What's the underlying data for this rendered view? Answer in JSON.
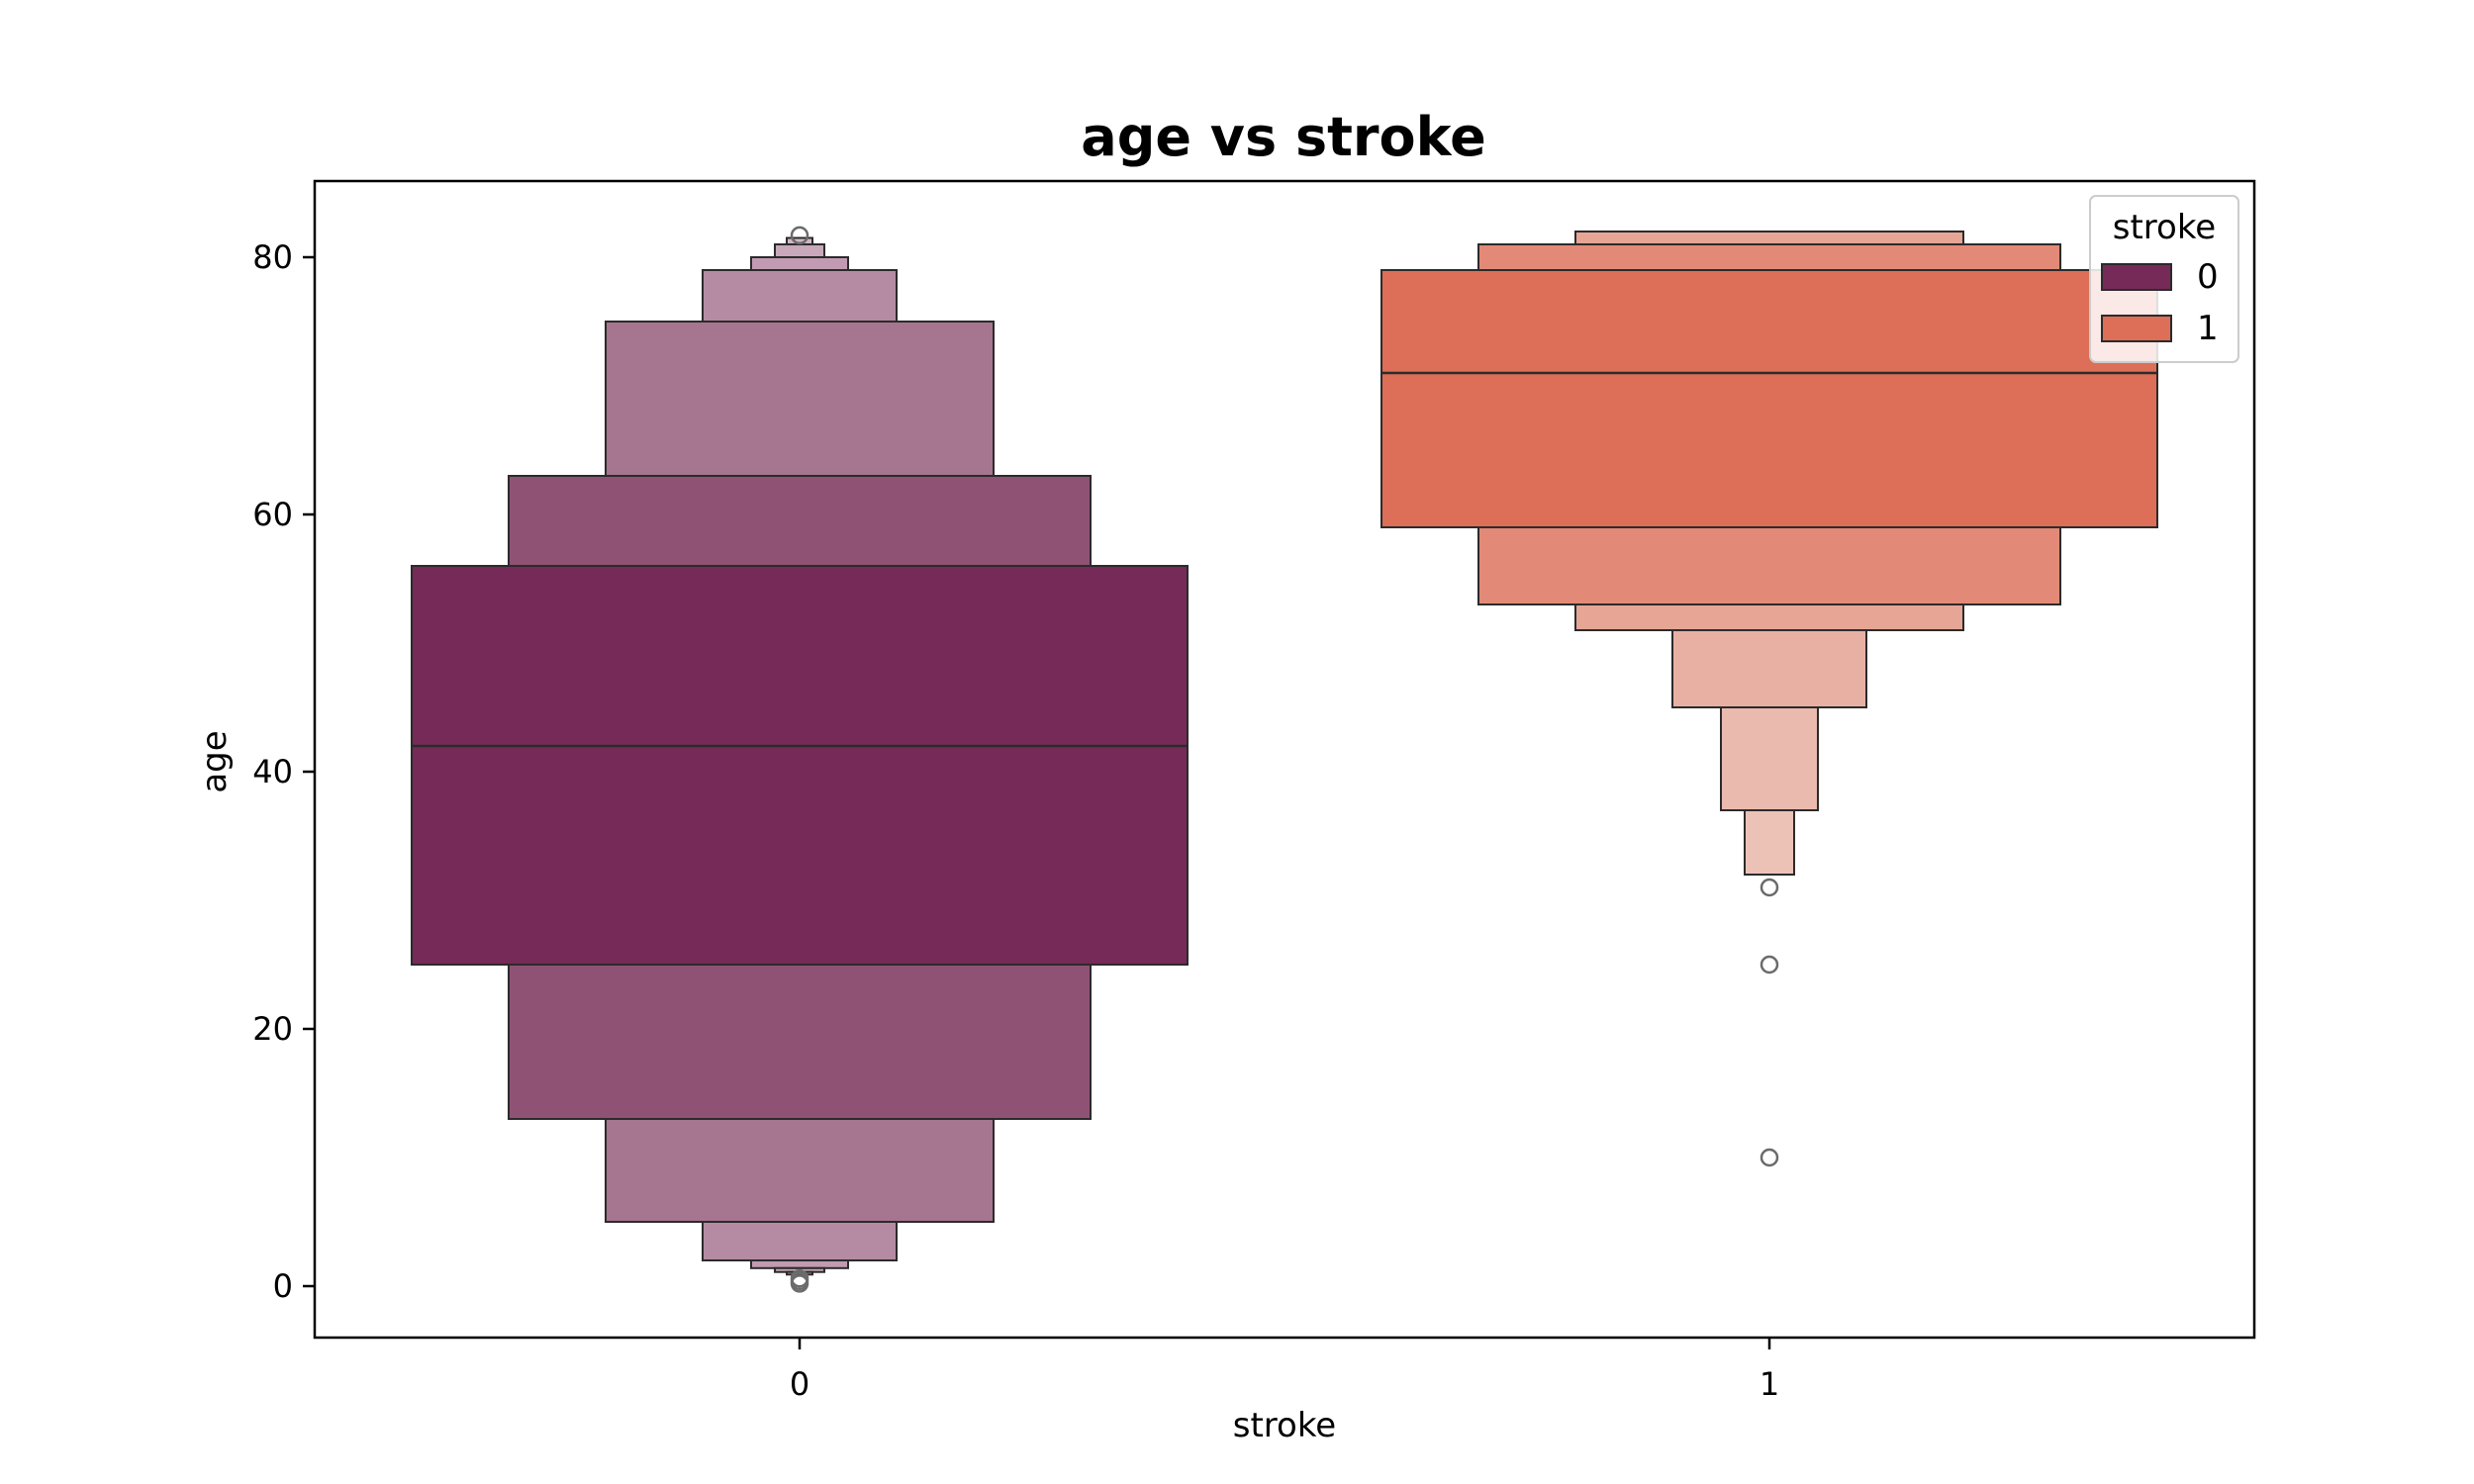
{
  "chart_data": {
    "type": "boxen",
    "title": "age vs stroke",
    "xlabel": "stroke",
    "ylabel": "age",
    "categories": [
      "0",
      "1"
    ],
    "ylim": [
      -4,
      86
    ],
    "yticks": [
      0,
      20,
      40,
      60,
      80
    ],
    "grid": false,
    "legend": {
      "title": "stroke",
      "position": "top-right",
      "entries": [
        {
          "label": "0",
          "color": "#762a57"
        },
        {
          "label": "1",
          "color": "#dd6e57"
        }
      ]
    },
    "series": [
      {
        "category": "0",
        "median": 42,
        "levels": [
          {
            "lower": 25,
            "upper": 56,
            "color": "#762a57"
          },
          {
            "lower": 13,
            "upper": 63,
            "color": "#8f5275"
          },
          {
            "lower": 5,
            "upper": 75,
            "color": "#a6758f"
          },
          {
            "lower": 2,
            "upper": 79,
            "color": "#b58ba4"
          },
          {
            "lower": 1.4,
            "upper": 80,
            "color": "#c29bb2"
          },
          {
            "lower": 1.1,
            "upper": 81,
            "color": "#c9a8bb"
          },
          {
            "lower": 0.9,
            "upper": 81.5,
            "color": "#d3b6c6"
          }
        ],
        "outliers": [
          0.2,
          0.4,
          0.6,
          81.7
        ]
      },
      {
        "category": "1",
        "median": 71,
        "levels": [
          {
            "lower": 59,
            "upper": 79,
            "color": "#dd6e57"
          },
          {
            "lower": 53,
            "upper": 81,
            "color": "#e28a77"
          },
          {
            "lower": 51,
            "upper": 82,
            "color": "#e6a595"
          },
          {
            "lower": 45,
            "upper": 82,
            "color": "#e8b0a3"
          },
          {
            "lower": 37,
            "upper": 82,
            "color": "#eabaae"
          },
          {
            "lower": 32,
            "upper": 82,
            "color": "#ecc2b7"
          }
        ],
        "outliers": [
          31,
          25,
          10
        ]
      }
    ],
    "x_tick_labels": [
      "0",
      "1"
    ],
    "y_tick_labels": [
      "0",
      "20",
      "40",
      "60",
      "80"
    ]
  }
}
